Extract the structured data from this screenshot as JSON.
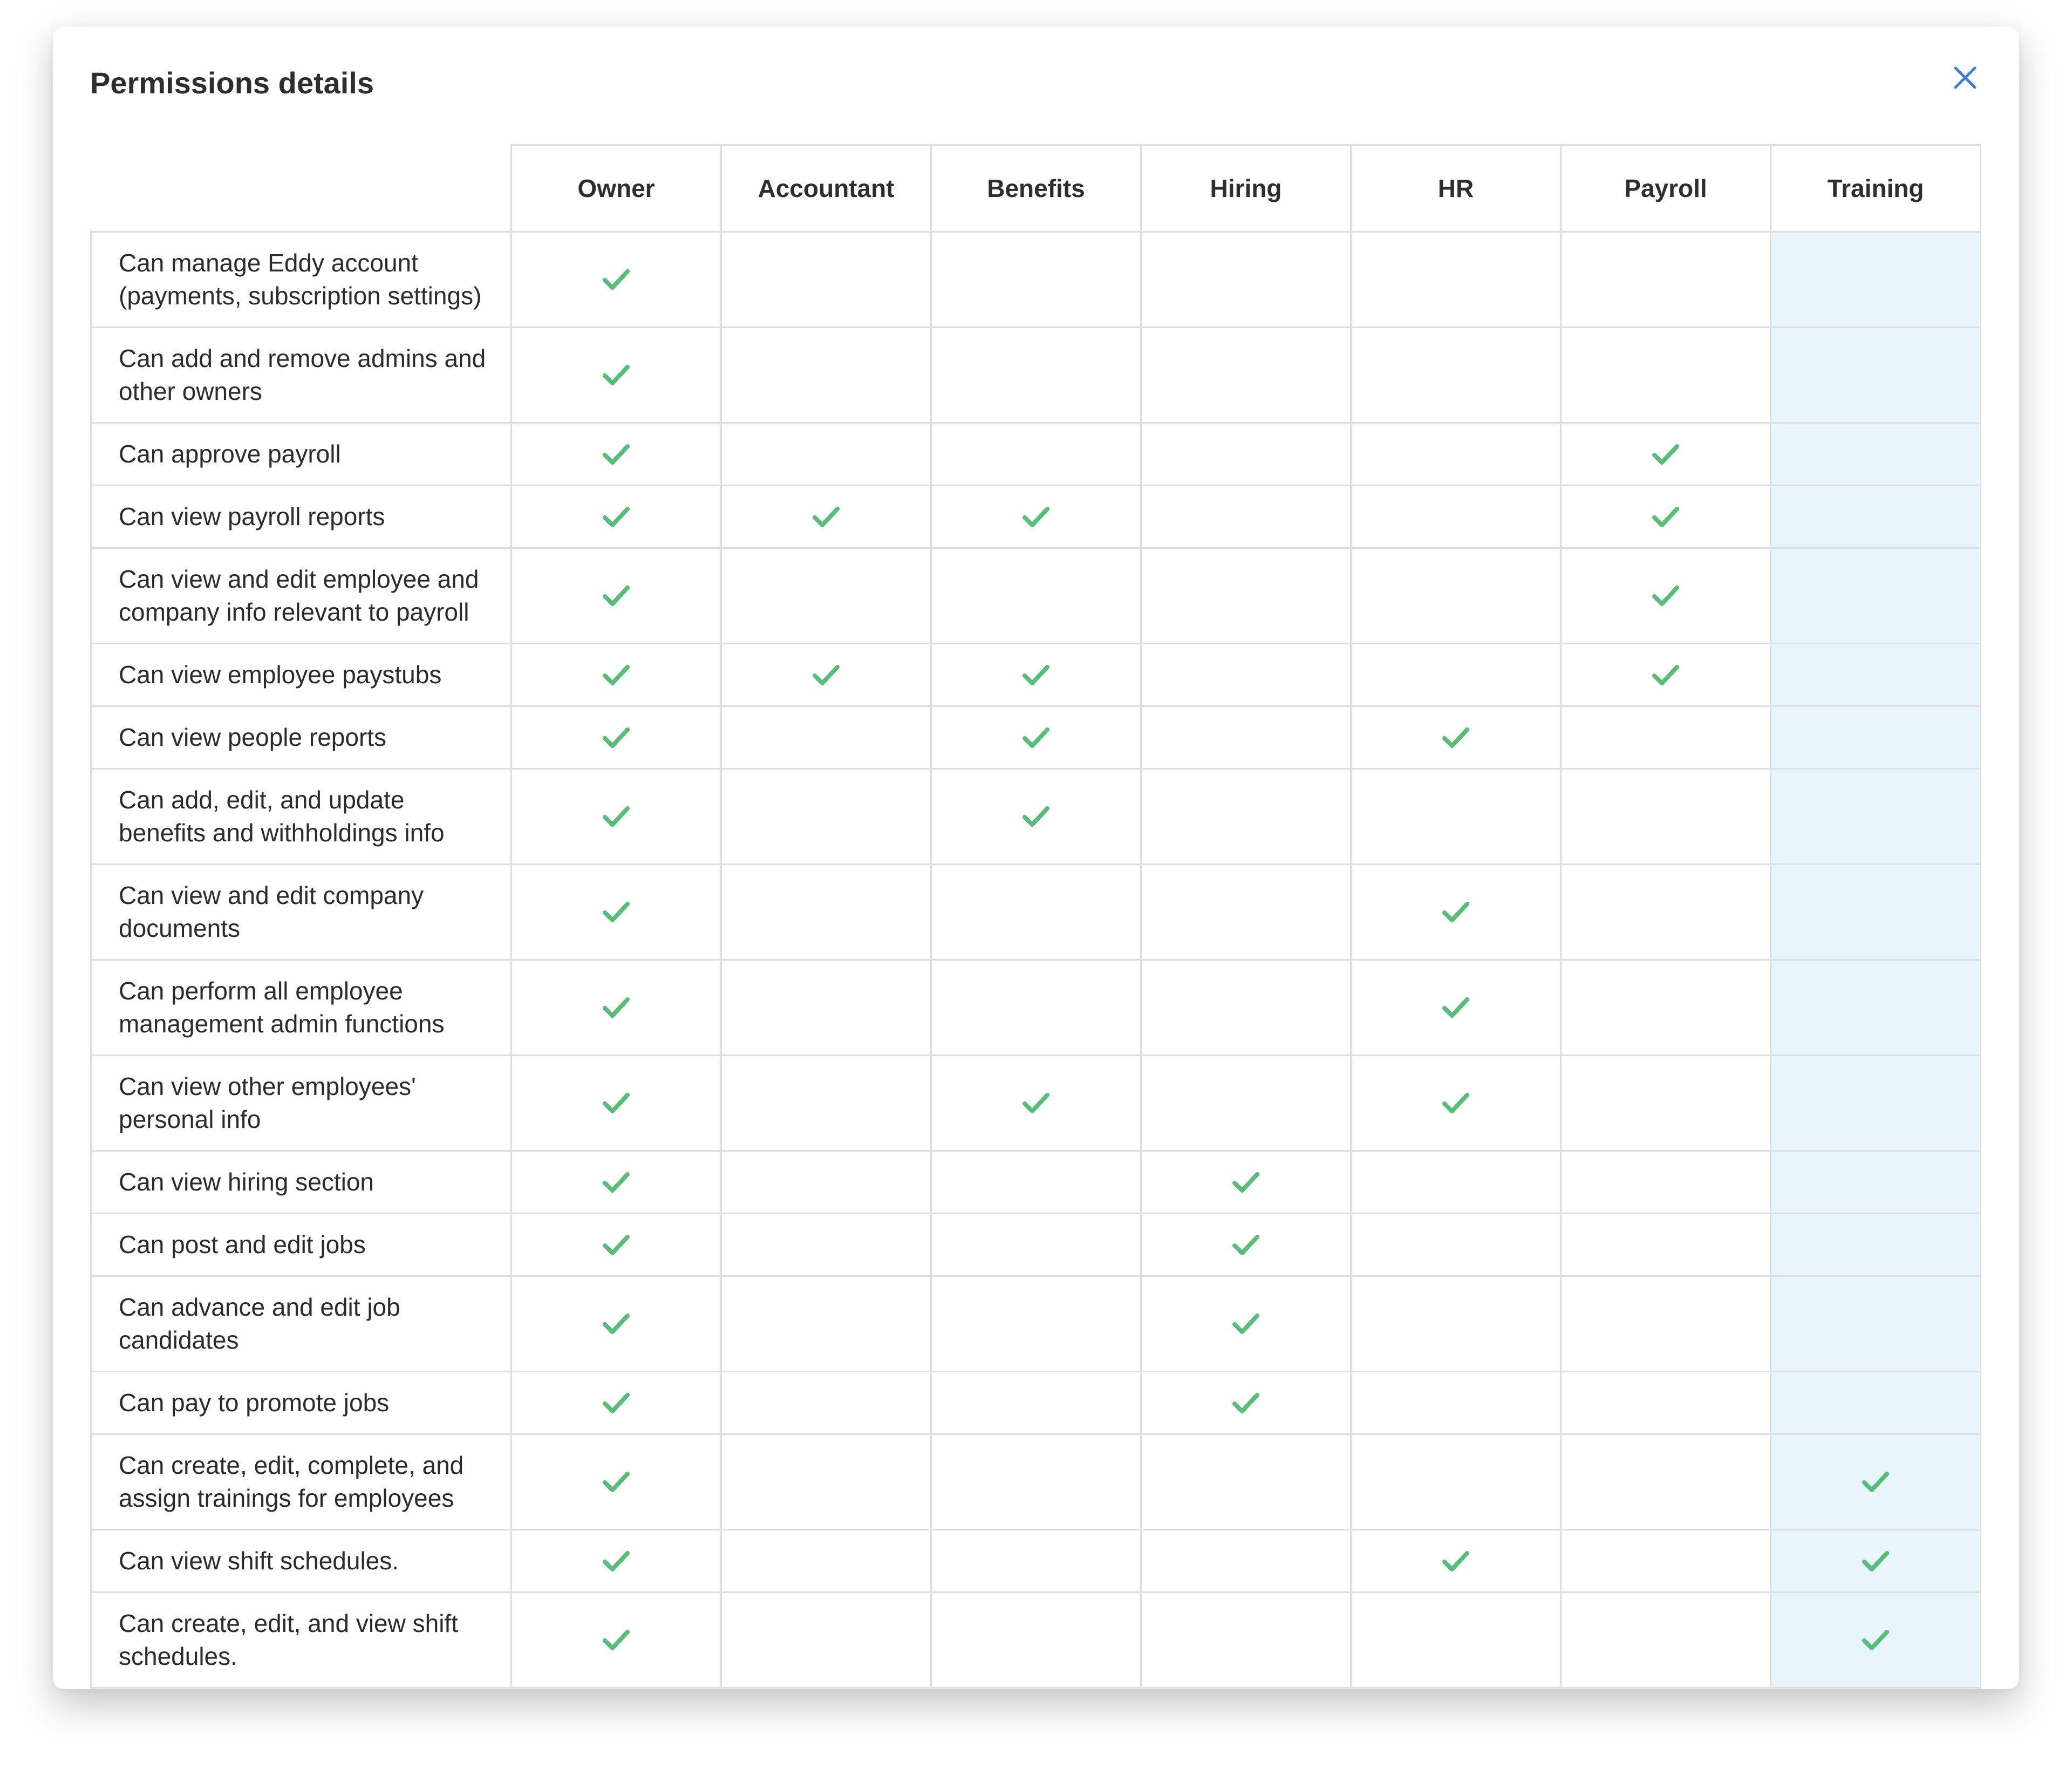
{
  "header": {
    "title": "Permissions details"
  },
  "table": {
    "columns": [
      "Owner",
      "Accountant",
      "Benefits",
      "Hiring",
      "HR",
      "Payroll",
      "Training"
    ],
    "highlight_column": 6,
    "rows": [
      {
        "label": "Can manage Eddy account (payments, subscription settings)",
        "checks": [
          true,
          false,
          false,
          false,
          false,
          false,
          false
        ]
      },
      {
        "label": "Can add and remove admins and other owners",
        "checks": [
          true,
          false,
          false,
          false,
          false,
          false,
          false
        ]
      },
      {
        "label": "Can approve payroll",
        "checks": [
          true,
          false,
          false,
          false,
          false,
          true,
          false
        ]
      },
      {
        "label": "Can view payroll reports",
        "checks": [
          true,
          true,
          true,
          false,
          false,
          true,
          false
        ]
      },
      {
        "label": "Can view and edit employee and company info relevant to payroll",
        "checks": [
          true,
          false,
          false,
          false,
          false,
          true,
          false
        ]
      },
      {
        "label": "Can view employee paystubs",
        "checks": [
          true,
          true,
          true,
          false,
          false,
          true,
          false
        ]
      },
      {
        "label": "Can view people reports",
        "checks": [
          true,
          false,
          true,
          false,
          true,
          false,
          false
        ]
      },
      {
        "label": "Can add, edit, and update benefits and withholdings info",
        "checks": [
          true,
          false,
          true,
          false,
          false,
          false,
          false
        ]
      },
      {
        "label": "Can view and edit company documents",
        "checks": [
          true,
          false,
          false,
          false,
          true,
          false,
          false
        ]
      },
      {
        "label": "Can perform all employee management admin functions",
        "checks": [
          true,
          false,
          false,
          false,
          true,
          false,
          false
        ]
      },
      {
        "label": "Can view other employees' personal info",
        "checks": [
          true,
          false,
          true,
          false,
          true,
          false,
          false
        ]
      },
      {
        "label": "Can view hiring section",
        "checks": [
          true,
          false,
          false,
          true,
          false,
          false,
          false
        ]
      },
      {
        "label": "Can post and edit jobs",
        "checks": [
          true,
          false,
          false,
          true,
          false,
          false,
          false
        ]
      },
      {
        "label": "Can advance and edit job candidates",
        "checks": [
          true,
          false,
          false,
          true,
          false,
          false,
          false
        ]
      },
      {
        "label": "Can pay to promote jobs",
        "checks": [
          true,
          false,
          false,
          true,
          false,
          false,
          false
        ]
      },
      {
        "label": "Can create, edit, complete, and assign trainings for employees",
        "checks": [
          true,
          false,
          false,
          false,
          false,
          false,
          true
        ]
      },
      {
        "label": "Can view shift schedules.",
        "checks": [
          true,
          false,
          false,
          false,
          true,
          false,
          true
        ]
      },
      {
        "label": "Can create, edit, and view shift schedules.",
        "checks": [
          true,
          false,
          false,
          false,
          false,
          false,
          true
        ]
      }
    ]
  }
}
